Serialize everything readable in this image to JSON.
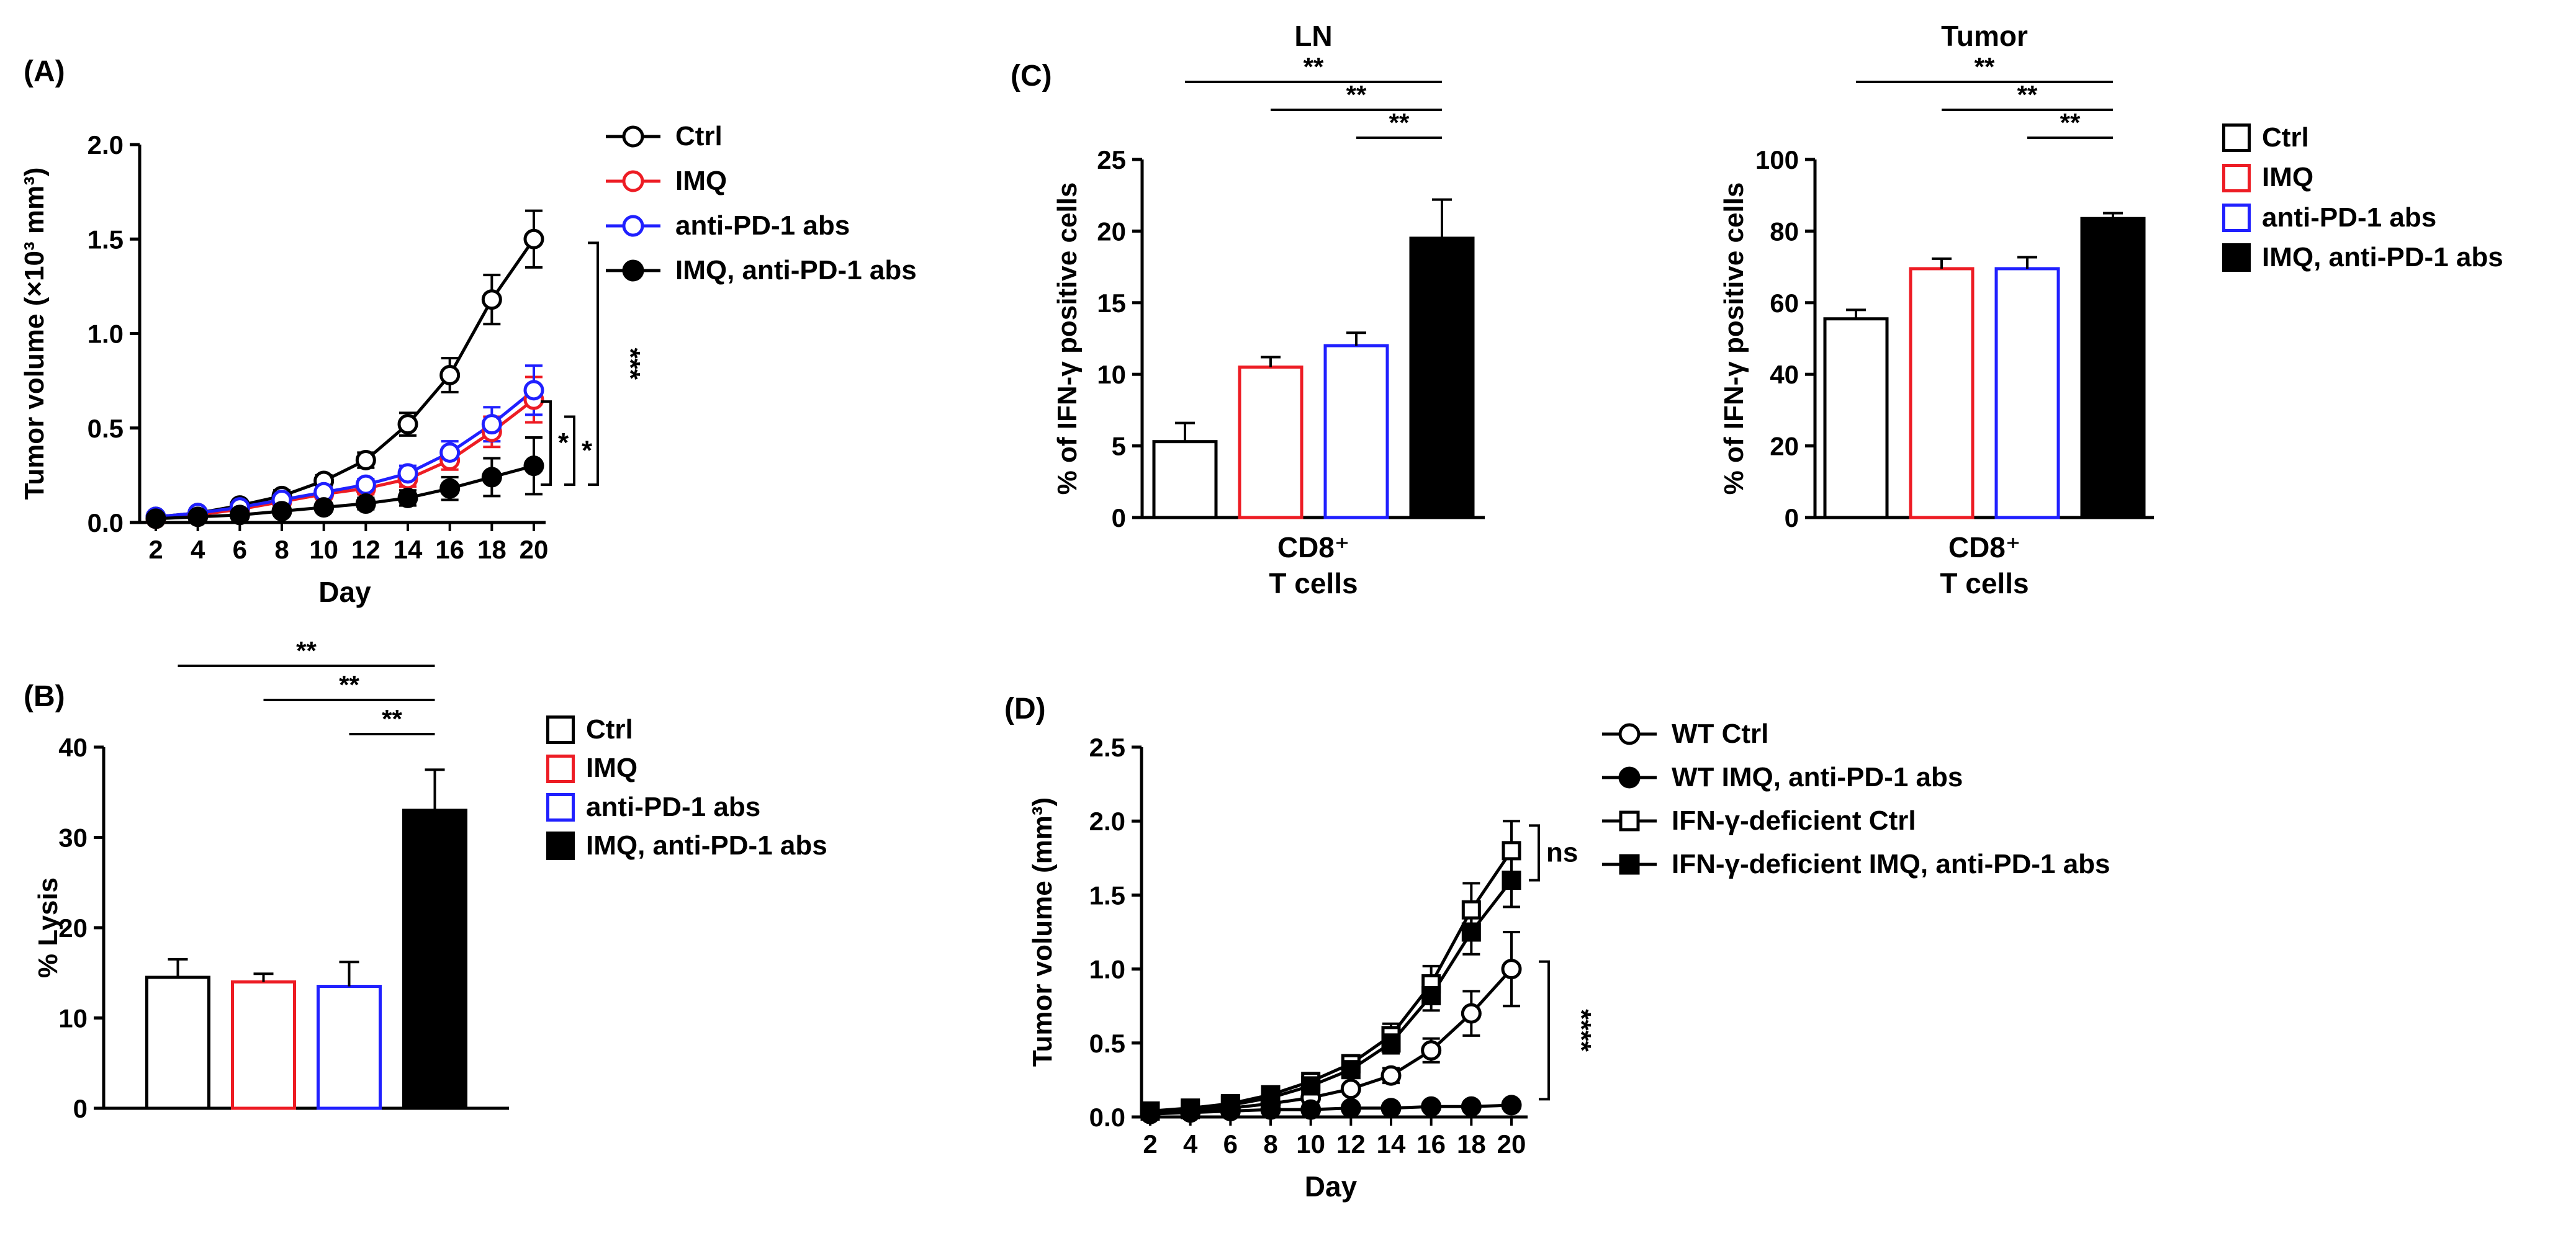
{
  "figure": {
    "panel_labels": {
      "a": "(A)",
      "b": "(B)",
      "c": "(C)",
      "d": "(D)"
    }
  },
  "colors": {
    "black": "#000000",
    "red": "#ed1c24",
    "blue": "#2020ff",
    "white": "#ffffff"
  },
  "chart_data": [
    {
      "id": "A",
      "type": "line",
      "title": "",
      "ylabel": "Tumor volume (×10³ mm³)",
      "xlabel": "Day",
      "ylim": [
        0,
        2.0
      ],
      "yticks": [
        "0.0",
        "0.5",
        "1.0",
        "1.5",
        "2.0"
      ],
      "x": [
        2,
        4,
        6,
        8,
        10,
        12,
        14,
        16,
        18,
        20
      ],
      "series": [
        {
          "name": "Ctrl",
          "marker": "circle",
          "open": true,
          "color": "#000000",
          "values": [
            0.03,
            0.05,
            0.09,
            0.14,
            0.22,
            0.33,
            0.52,
            0.78,
            1.18,
            1.5
          ],
          "errors": [
            0.01,
            0.01,
            0.02,
            0.03,
            0.03,
            0.04,
            0.06,
            0.09,
            0.13,
            0.15
          ]
        },
        {
          "name": "IMQ",
          "marker": "circle",
          "open": true,
          "color": "#ed1c24",
          "values": [
            0.02,
            0.04,
            0.07,
            0.11,
            0.15,
            0.18,
            0.23,
            0.33,
            0.48,
            0.65
          ],
          "errors": [
            0.01,
            0.01,
            0.02,
            0.02,
            0.02,
            0.03,
            0.04,
            0.05,
            0.08,
            0.12
          ]
        },
        {
          "name": "anti-PD-1 abs",
          "marker": "circle",
          "open": true,
          "color": "#2020ff",
          "values": [
            0.03,
            0.05,
            0.08,
            0.12,
            0.16,
            0.2,
            0.26,
            0.37,
            0.52,
            0.7
          ],
          "errors": [
            0.01,
            0.01,
            0.02,
            0.02,
            0.03,
            0.03,
            0.04,
            0.06,
            0.09,
            0.13
          ]
        },
        {
          "name": "IMQ, anti-PD-1 abs",
          "marker": "circle",
          "open": false,
          "color": "#000000",
          "values": [
            0.02,
            0.03,
            0.04,
            0.06,
            0.08,
            0.1,
            0.13,
            0.18,
            0.24,
            0.3
          ],
          "errors": [
            0.01,
            0.01,
            0.01,
            0.02,
            0.02,
            0.03,
            0.04,
            0.06,
            0.1,
            0.15
          ]
        }
      ],
      "annotations": [
        {
          "label": "*",
          "y1": 0.64,
          "y2": 0.2,
          "x_off": 8,
          "vertical": false
        },
        {
          "label": "*",
          "y1": 0.56,
          "y2": 0.2,
          "x_off": 46,
          "vertical": false
        },
        {
          "label": "***",
          "y1": 1.48,
          "y2": 0.2,
          "x_off": 84,
          "vertical": true
        }
      ],
      "legend_style": "line"
    },
    {
      "id": "B",
      "type": "bar",
      "title": "",
      "ylabel": "% Lysis",
      "ylim": [
        0,
        40
      ],
      "yticks": [
        "0",
        "10",
        "20",
        "30",
        "40"
      ],
      "bars": [
        {
          "label": "Ctrl",
          "fill": "#ffffff",
          "stroke": "#000000",
          "value": 14.5,
          "error": 2.0
        },
        {
          "label": "IMQ",
          "fill": "#ffffff",
          "stroke": "#ed1c24",
          "value": 14.0,
          "error": 0.9
        },
        {
          "label": "anti-PD-1 abs",
          "fill": "#ffffff",
          "stroke": "#2020ff",
          "value": 13.5,
          "error": 2.7
        },
        {
          "label": "IMQ, anti-PD-1 abs",
          "fill": "#000000",
          "stroke": "#000000",
          "value": 33.0,
          "error": 4.5
        }
      ],
      "annotations": [
        {
          "label": "**",
          "from": 0,
          "to": 3,
          "level": 2
        },
        {
          "label": "**",
          "from": 1,
          "to": 3,
          "level": 1
        },
        {
          "label": "**",
          "from": 2,
          "to": 3,
          "level": 0
        }
      ],
      "legend_style": "swatch"
    },
    {
      "id": "C-LN",
      "type": "bar",
      "title": "LN",
      "ylabel": "% of IFN-γ positive cells",
      "ylim": [
        0,
        25
      ],
      "yticks": [
        "0",
        "5",
        "10",
        "15",
        "20",
        "25"
      ],
      "xlabel_lines": [
        "CD8⁺",
        "T cells"
      ],
      "bars": [
        {
          "label": "Ctrl",
          "fill": "#ffffff",
          "stroke": "#000000",
          "value": 5.3,
          "error": 1.3
        },
        {
          "label": "IMQ",
          "fill": "#ffffff",
          "stroke": "#ed1c24",
          "value": 10.5,
          "error": 0.7
        },
        {
          "label": "anti-PD-1 abs",
          "fill": "#ffffff",
          "stroke": "#2020ff",
          "value": 12.0,
          "error": 0.9
        },
        {
          "label": "IMQ, anti-PD-1 abs",
          "fill": "#000000",
          "stroke": "#000000",
          "value": 19.5,
          "error": 2.7
        }
      ],
      "annotations": [
        {
          "label": "**",
          "from": 0,
          "to": 3,
          "level": 2
        },
        {
          "label": "**",
          "from": 1,
          "to": 3,
          "level": 1
        },
        {
          "label": "**",
          "from": 2,
          "to": 3,
          "level": 0
        }
      ],
      "legend_style": "swatch"
    },
    {
      "id": "C-Tumor",
      "type": "bar",
      "title": "Tumor",
      "ylabel": "% of IFN-γ positive cells",
      "ylim": [
        0,
        100
      ],
      "yticks": [
        "0",
        "20",
        "40",
        "60",
        "80",
        "100"
      ],
      "xlabel_lines": [
        "CD8⁺",
        "T cells"
      ],
      "bars": [
        {
          "label": "Ctrl",
          "fill": "#ffffff",
          "stroke": "#000000",
          "value": 55.5,
          "error": 2.5
        },
        {
          "label": "IMQ",
          "fill": "#ffffff",
          "stroke": "#ed1c24",
          "value": 69.5,
          "error": 2.8
        },
        {
          "label": "anti-PD-1 abs",
          "fill": "#ffffff",
          "stroke": "#2020ff",
          "value": 69.5,
          "error": 3.2
        },
        {
          "label": "IMQ, anti-PD-1 abs",
          "fill": "#000000",
          "stroke": "#000000",
          "value": 83.5,
          "error": 1.5
        }
      ],
      "annotations": [
        {
          "label": "**",
          "from": 0,
          "to": 3,
          "level": 2
        },
        {
          "label": "**",
          "from": 1,
          "to": 3,
          "level": 1
        },
        {
          "label": "**",
          "from": 2,
          "to": 3,
          "level": 0
        }
      ],
      "legend_style": "swatch"
    },
    {
      "id": "D",
      "type": "line",
      "title": "",
      "ylabel": "Tumor volume (mm³)",
      "xlabel": "Day",
      "ylim": [
        0,
        2.5
      ],
      "yticks": [
        "0.0",
        "0.5",
        "1.0",
        "1.5",
        "2.0",
        "2.5"
      ],
      "x": [
        2,
        4,
        6,
        8,
        10,
        12,
        14,
        16,
        18,
        20
      ],
      "series": [
        {
          "name": "WT Ctrl",
          "marker": "circle",
          "open": true,
          "color": "#000000",
          "values": [
            0.03,
            0.04,
            0.06,
            0.09,
            0.13,
            0.19,
            0.28,
            0.45,
            0.7,
            1.0
          ],
          "errors": [
            0.01,
            0.01,
            0.01,
            0.02,
            0.02,
            0.03,
            0.05,
            0.08,
            0.15,
            0.25
          ]
        },
        {
          "name": "WT IMQ, anti-PD-1 abs",
          "marker": "circle",
          "open": false,
          "color": "#000000",
          "values": [
            0.02,
            0.03,
            0.04,
            0.05,
            0.05,
            0.06,
            0.06,
            0.07,
            0.07,
            0.08
          ],
          "errors": [
            0.0,
            0.0,
            0.0,
            0.01,
            0.01,
            0.01,
            0.01,
            0.01,
            0.02,
            0.02
          ]
        },
        {
          "name": "IFN-γ-deficient Ctrl",
          "marker": "square",
          "open": true,
          "color": "#000000",
          "values": [
            0.04,
            0.06,
            0.09,
            0.15,
            0.24,
            0.36,
            0.55,
            0.9,
            1.4,
            1.8
          ],
          "errors": [
            0.01,
            0.01,
            0.02,
            0.02,
            0.03,
            0.05,
            0.08,
            0.12,
            0.18,
            0.2
          ]
        },
        {
          "name": "IFN-γ-deficient IMQ, anti-PD-1 abs",
          "marker": "square",
          "open": false,
          "color": "#000000",
          "values": [
            0.04,
            0.05,
            0.08,
            0.13,
            0.21,
            0.32,
            0.5,
            0.82,
            1.25,
            1.6
          ],
          "errors": [
            0.01,
            0.01,
            0.02,
            0.02,
            0.03,
            0.04,
            0.07,
            0.1,
            0.15,
            0.18
          ]
        }
      ],
      "annotations": [
        {
          "label": "ns",
          "y1": 1.97,
          "y2": 1.6,
          "x_off": 18,
          "vertical": false
        },
        {
          "label": "****",
          "y1": 1.05,
          "y2": 0.12,
          "x_off": 34,
          "vertical": true
        }
      ],
      "legend_style": "line"
    }
  ]
}
